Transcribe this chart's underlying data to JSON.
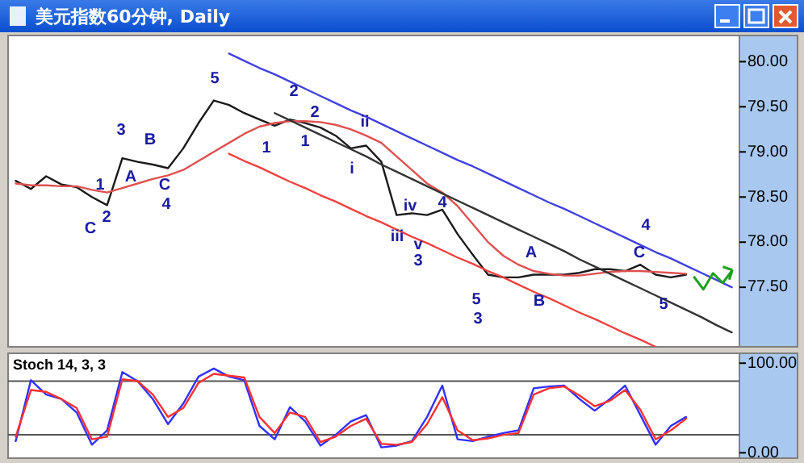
{
  "chart_data": [
    {
      "type": "line",
      "title": "美元指数60分钟, Daily",
      "categories": [
        null,
        null,
        null,
        null,
        null,
        null,
        null,
        null,
        null,
        null,
        null,
        null,
        null,
        null,
        null,
        null,
        null,
        null,
        null,
        null,
        null,
        null,
        null,
        null,
        null,
        null,
        null,
        null,
        null,
        null,
        null,
        null,
        null,
        null,
        null,
        null,
        null,
        null,
        null,
        null,
        null,
        null,
        null,
        null,
        null,
        null,
        null,
        null
      ],
      "ylim": [
        76.84,
        80.29
      ],
      "yticks": [
        {
          "value": 80,
          "label": "80.00"
        },
        {
          "value": 79.5,
          "label": "79.50"
        },
        {
          "value": 79,
          "label": "79.00"
        },
        {
          "value": 78.5,
          "label": "78.50"
        },
        {
          "value": 78,
          "label": "78.00"
        },
        {
          "value": 77.5,
          "label": "77.50"
        }
      ],
      "tick_labels": "y",
      "series": [
        {
          "color": "#1a1a1a",
          "values": [
            78.68,
            78.59,
            78.73,
            78.64,
            78.61,
            78.5,
            78.41,
            78.93,
            78.89,
            78.86,
            78.82,
            79.04,
            79.32,
            79.57,
            79.52,
            79.43,
            79.36,
            79.29,
            79.36,
            79.32,
            79.27,
            79.18,
            79.04,
            79.07,
            78.89,
            78.3,
            78.32,
            78.3,
            78.36,
            78.09,
            77.86,
            77.64,
            77.61,
            77.61,
            77.64,
            77.64,
            77.64,
            77.66,
            77.7,
            77.7,
            77.68,
            77.75,
            77.64,
            77.61,
            77.64,
            null,
            null,
            null
          ]
        },
        {
          "color": "#e05050",
          "values": [
            78.65,
            78.63,
            78.63,
            78.62,
            78.62,
            78.58,
            78.55,
            78.6,
            78.65,
            78.7,
            78.74,
            78.8,
            78.9,
            79.0,
            79.1,
            79.2,
            79.28,
            79.32,
            79.34,
            79.34,
            79.33,
            79.3,
            79.25,
            79.18,
            79.1,
            78.95,
            78.8,
            78.65,
            78.55,
            78.4,
            78.2,
            78.0,
            77.85,
            77.75,
            77.68,
            77.65,
            77.63,
            77.63,
            77.65,
            77.67,
            77.68,
            77.68,
            77.67,
            77.66,
            77.65,
            null,
            null,
            null
          ]
        },
        {
          "color": "#4040e0",
          "values": [
            null,
            null,
            null,
            null,
            null,
            null,
            null,
            null,
            null,
            null,
            null,
            null,
            null,
            null,
            80.09,
            80.01,
            79.93,
            79.86,
            79.78,
            79.7,
            79.62,
            79.54,
            79.46,
            79.39,
            79.31,
            79.23,
            79.15,
            79.07,
            78.99,
            78.91,
            78.84,
            78.76,
            78.68,
            78.6,
            78.52,
            78.44,
            78.37,
            78.29,
            78.21,
            78.13,
            78.05,
            77.97,
            77.89,
            77.82,
            77.74,
            77.66,
            77.58,
            77.5
          ]
        },
        {
          "color": "#333333",
          "values": [
            null,
            null,
            null,
            null,
            null,
            null,
            null,
            null,
            null,
            null,
            null,
            null,
            null,
            null,
            null,
            null,
            null,
            79.43,
            79.35,
            79.27,
            79.19,
            79.11,
            79.03,
            78.95,
            78.86,
            78.78,
            78.7,
            78.62,
            78.54,
            78.46,
            78.38,
            78.3,
            78.22,
            78.14,
            78.06,
            77.98,
            77.9,
            77.81,
            77.73,
            77.65,
            77.57,
            77.49,
            77.41,
            77.33,
            77.25,
            77.17,
            77.08,
            77.0
          ]
        },
        {
          "color": "#f04040",
          "values": [
            null,
            null,
            null,
            null,
            null,
            null,
            null,
            null,
            null,
            null,
            null,
            null,
            null,
            null,
            78.98,
            78.9,
            78.83,
            78.75,
            78.67,
            78.6,
            78.52,
            78.45,
            78.37,
            78.29,
            78.22,
            78.14,
            78.06,
            77.99,
            77.91,
            77.83,
            77.76,
            77.68,
            77.61,
            77.53,
            77.45,
            77.38,
            77.3,
            77.22,
            77.15,
            77.07,
            76.99,
            76.92,
            76.84,
            null,
            null,
            null,
            null,
            null
          ]
        }
      ],
      "annotations": [
        "1",
        "2",
        "C",
        "3",
        "A",
        "B",
        "C",
        "4",
        "5",
        "1",
        "2",
        "1",
        "2",
        "ii",
        "i",
        "iii",
        "iv",
        "v",
        "3",
        "4",
        "5",
        "3",
        "A",
        "B",
        "C",
        "4",
        "5"
      ]
    },
    {
      "type": "line",
      "title": "Stoch 14, 3, 3",
      "categories": [
        null,
        null,
        null,
        null,
        null,
        null,
        null,
        null,
        null,
        null,
        null,
        null,
        null,
        null,
        null,
        null,
        null,
        null,
        null,
        null,
        null,
        null,
        null,
        null,
        null,
        null,
        null,
        null,
        null,
        null,
        null,
        null,
        null,
        null,
        null,
        null,
        null,
        null,
        null,
        null,
        null,
        null,
        null,
        null,
        null,
        null,
        null,
        null
      ],
      "ylim": [
        -6,
        111
      ],
      "yticks": [
        {
          "value": 100,
          "label": "100.00"
        },
        {
          "value": 0,
          "label": "0.00"
        }
      ],
      "tick_labels": "y",
      "ref_lines": [
        {
          "axis": "y",
          "value": 80,
          "color": "#555555"
        },
        {
          "axis": "y",
          "value": 20,
          "color": "#555555"
        }
      ],
      "series": [
        {
          "color": "#3030ff",
          "values": [
            13,
            81,
            65,
            60,
            45,
            9,
            25,
            90,
            80,
            60,
            32,
            55,
            85,
            94,
            85,
            81,
            30,
            15,
            51,
            35,
            8,
            20,
            35,
            42,
            6,
            8,
            13,
            40,
            75,
            15,
            13,
            18,
            22,
            25,
            72,
            74,
            75,
            60,
            47,
            60,
            75,
            42,
            9,
            30,
            40,
            null,
            null,
            null
          ]
        },
        {
          "color": "#ff3030",
          "values": [
            18,
            70,
            68,
            60,
            50,
            15,
            18,
            82,
            80,
            65,
            40,
            50,
            78,
            88,
            86,
            84,
            40,
            22,
            45,
            40,
            12,
            18,
            30,
            38,
            10,
            9,
            12,
            32,
            62,
            25,
            14,
            16,
            20,
            22,
            65,
            72,
            74,
            64,
            52,
            58,
            70,
            48,
            15,
            25,
            38,
            null,
            null,
            null
          ]
        }
      ]
    }
  ]
}
